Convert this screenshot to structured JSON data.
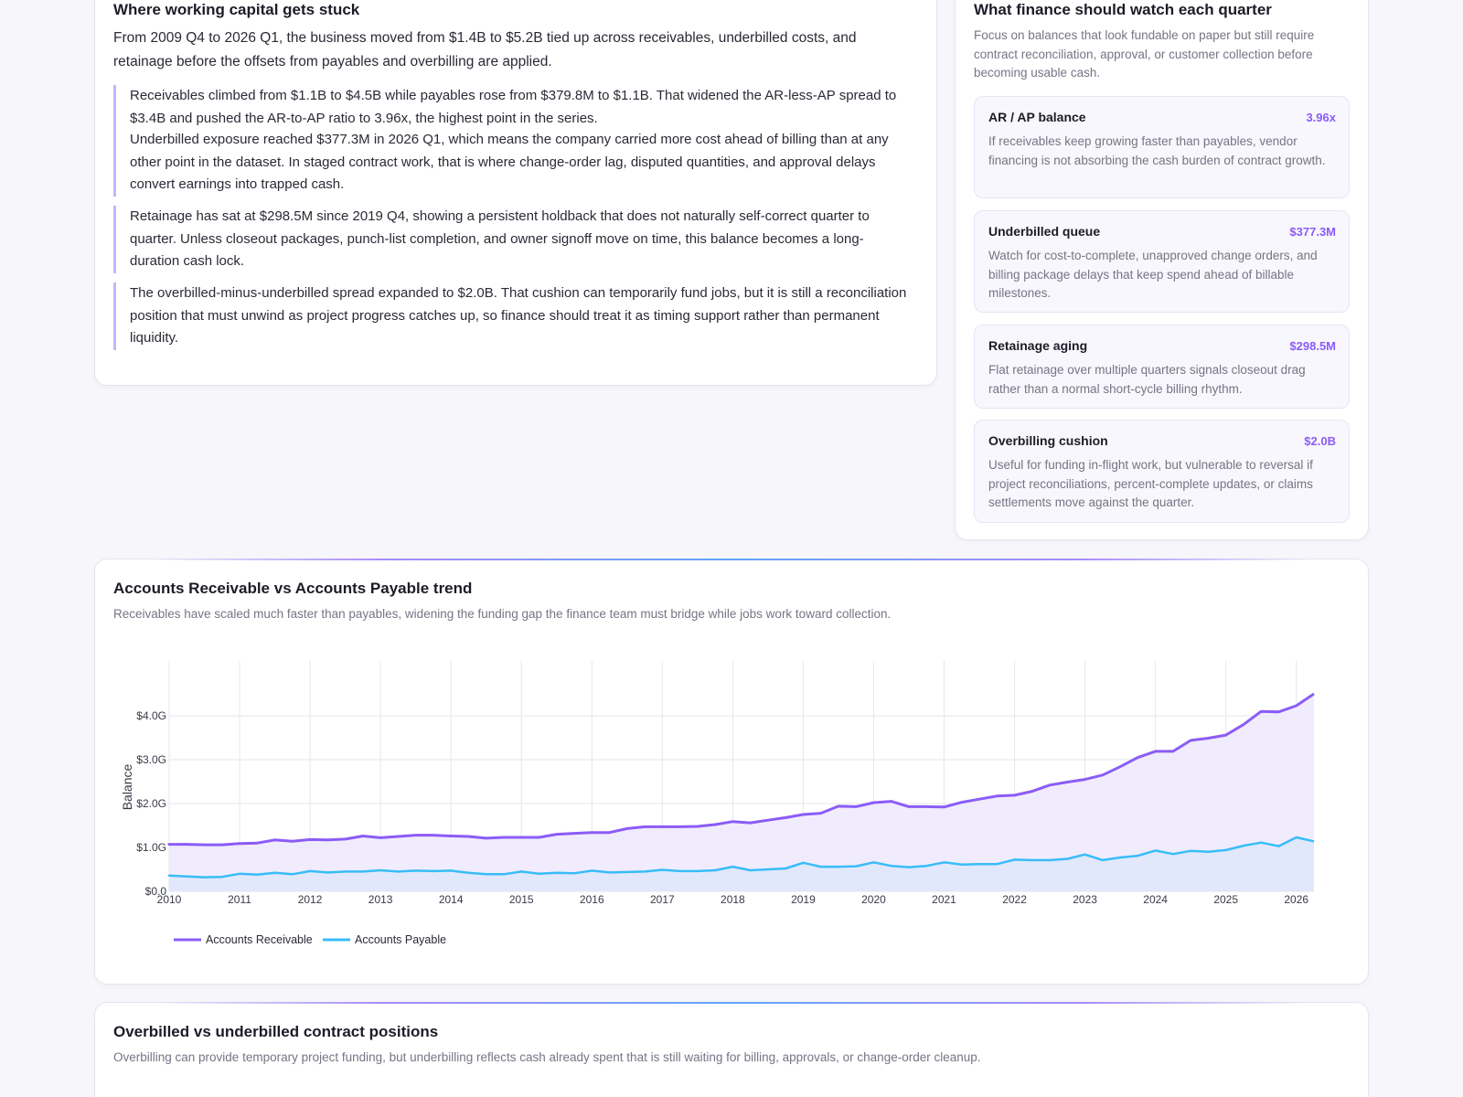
{
  "narrative": {
    "title": "Where working capital gets stuck",
    "lead": "From 2009 Q4 to 2026 Q1, the business moved from $1.4B to $5.2B tied up across receivables, underbilled costs, and retainage before the offsets from payables and overbilling are applied.",
    "points": [
      "Receivables climbed from $1.1B to $4.5B while payables rose from $379.8M to $1.1B. That widened the AR-less-AP spread to $3.4B and pushed the AR-to-AP ratio to 3.96x, the highest point in the series.",
      "Underbilled exposure reached $377.3M in 2026 Q1, which means the company carried more cost ahead of billing than at any other point in the dataset. In staged contract work, that is where change-order lag, disputed quantities, and approval delays convert earnings into trapped cash.",
      "Retainage has sat at $298.5M since 2019 Q4, showing a persistent holdback that does not naturally self-correct quarter to quarter. Unless closeout packages, punch-list completion, and owner signoff move on time, this balance becomes a long-duration cash lock.",
      "The overbilled-minus-underbilled spread expanded to $2.0B. That cushion can temporarily fund jobs, but it is still a reconciliation position that must unwind as project progress catches up, so finance should treat it as timing support rather than permanent liquidity."
    ]
  },
  "watch": {
    "title": "What finance should watch each quarter",
    "intro": "Focus on balances that look fundable on paper but still require contract reconciliation, approval, or customer collection before becoming usable cash.",
    "items": [
      {
        "title": "AR / AP balance",
        "value": "3.96x",
        "desc": "If receivables keep growing faster than payables, vendor financing is not absorbing the cash burden of contract growth."
      },
      {
        "title": "Underbilled queue",
        "value": "$377.3M",
        "desc": "Watch for cost-to-complete, unapproved change orders, and billing package delays that keep spend ahead of billable milestones."
      },
      {
        "title": "Retainage aging",
        "value": "$298.5M",
        "desc": "Flat retainage over multiple quarters signals closeout drag rather than a normal short-cycle billing rhythm."
      },
      {
        "title": "Overbilling cushion",
        "value": "$2.0B",
        "desc": "Useful for funding in-flight work, but vulnerable to reversal if project reconciliations, percent-complete updates, or claims settlements move against the quarter."
      }
    ]
  },
  "chart_card": {
    "title": "Accounts Receivable vs Accounts Payable trend",
    "subtitle": "Receivables have scaled much faster than payables, widening the funding gap the finance team must bridge while jobs work toward collection."
  },
  "bottom_card": {
    "title": "Overbilled vs underbilled contract positions",
    "subtitle": "Overbilling can provide temporary project funding, but underbilling reflects cash already spent that is still waiting for billing, approvals, or change-order cleanup."
  },
  "colors": {
    "receivable": "#8b5cf6",
    "payable": "#38bdf8",
    "receivable_fill": "#efeafd",
    "payable_fill": "#dfe8fb"
  },
  "chart_data": {
    "type": "area",
    "x_label_years": [
      "2010",
      "2011",
      "2012",
      "2013",
      "2014",
      "2015",
      "2016",
      "2017",
      "2018",
      "2019",
      "2020",
      "2021",
      "2022",
      "2023",
      "2024",
      "2025",
      "2026"
    ],
    "x_start": 2009.75,
    "x_step": 0.25,
    "xlim": [
      2010,
      2026.25
    ],
    "ylabel": "Balance",
    "ylim": [
      0,
      4.75
    ],
    "y_ticks": [
      {
        "value": 0,
        "label": "$0.0"
      },
      {
        "value": 1,
        "label": "$1.0G"
      },
      {
        "value": 2,
        "label": "$2.0G"
      },
      {
        "value": 3,
        "label": "$3.0G"
      },
      {
        "value": 4,
        "label": "$4.0G"
      }
    ],
    "legend_position": "bottom-left",
    "grid": true,
    "series": [
      {
        "name": "Accounts Receivable",
        "values": [
          1.1,
          1.07,
          1.07,
          1.06,
          1.06,
          1.09,
          1.1,
          1.17,
          1.14,
          1.18,
          1.17,
          1.19,
          1.26,
          1.22,
          1.25,
          1.28,
          1.28,
          1.26,
          1.25,
          1.21,
          1.23,
          1.23,
          1.23,
          1.3,
          1.32,
          1.34,
          1.34,
          1.43,
          1.47,
          1.47,
          1.47,
          1.48,
          1.52,
          1.59,
          1.56,
          1.62,
          1.68,
          1.75,
          1.78,
          1.94,
          1.93,
          2.02,
          2.05,
          1.93,
          1.93,
          1.92,
          2.03,
          2.1,
          2.17,
          2.19,
          2.28,
          2.42,
          2.49,
          2.55,
          2.65,
          2.84,
          3.05,
          3.19,
          3.19,
          3.44,
          3.49,
          3.56,
          3.8,
          4.1,
          4.09,
          4.23,
          4.5
        ]
      },
      {
        "name": "Accounts Payable",
        "values": [
          0.38,
          0.36,
          0.34,
          0.32,
          0.33,
          0.4,
          0.38,
          0.42,
          0.39,
          0.46,
          0.43,
          0.45,
          0.45,
          0.48,
          0.45,
          0.47,
          0.46,
          0.47,
          0.42,
          0.39,
          0.39,
          0.45,
          0.4,
          0.42,
          0.41,
          0.47,
          0.43,
          0.44,
          0.45,
          0.49,
          0.46,
          0.46,
          0.48,
          0.56,
          0.48,
          0.5,
          0.52,
          0.65,
          0.56,
          0.56,
          0.57,
          0.66,
          0.58,
          0.55,
          0.58,
          0.66,
          0.61,
          0.62,
          0.62,
          0.72,
          0.71,
          0.71,
          0.74,
          0.84,
          0.71,
          0.77,
          0.81,
          0.93,
          0.85,
          0.92,
          0.9,
          0.94,
          1.04,
          1.11,
          1.03,
          1.23,
          1.14
        ]
      }
    ]
  }
}
